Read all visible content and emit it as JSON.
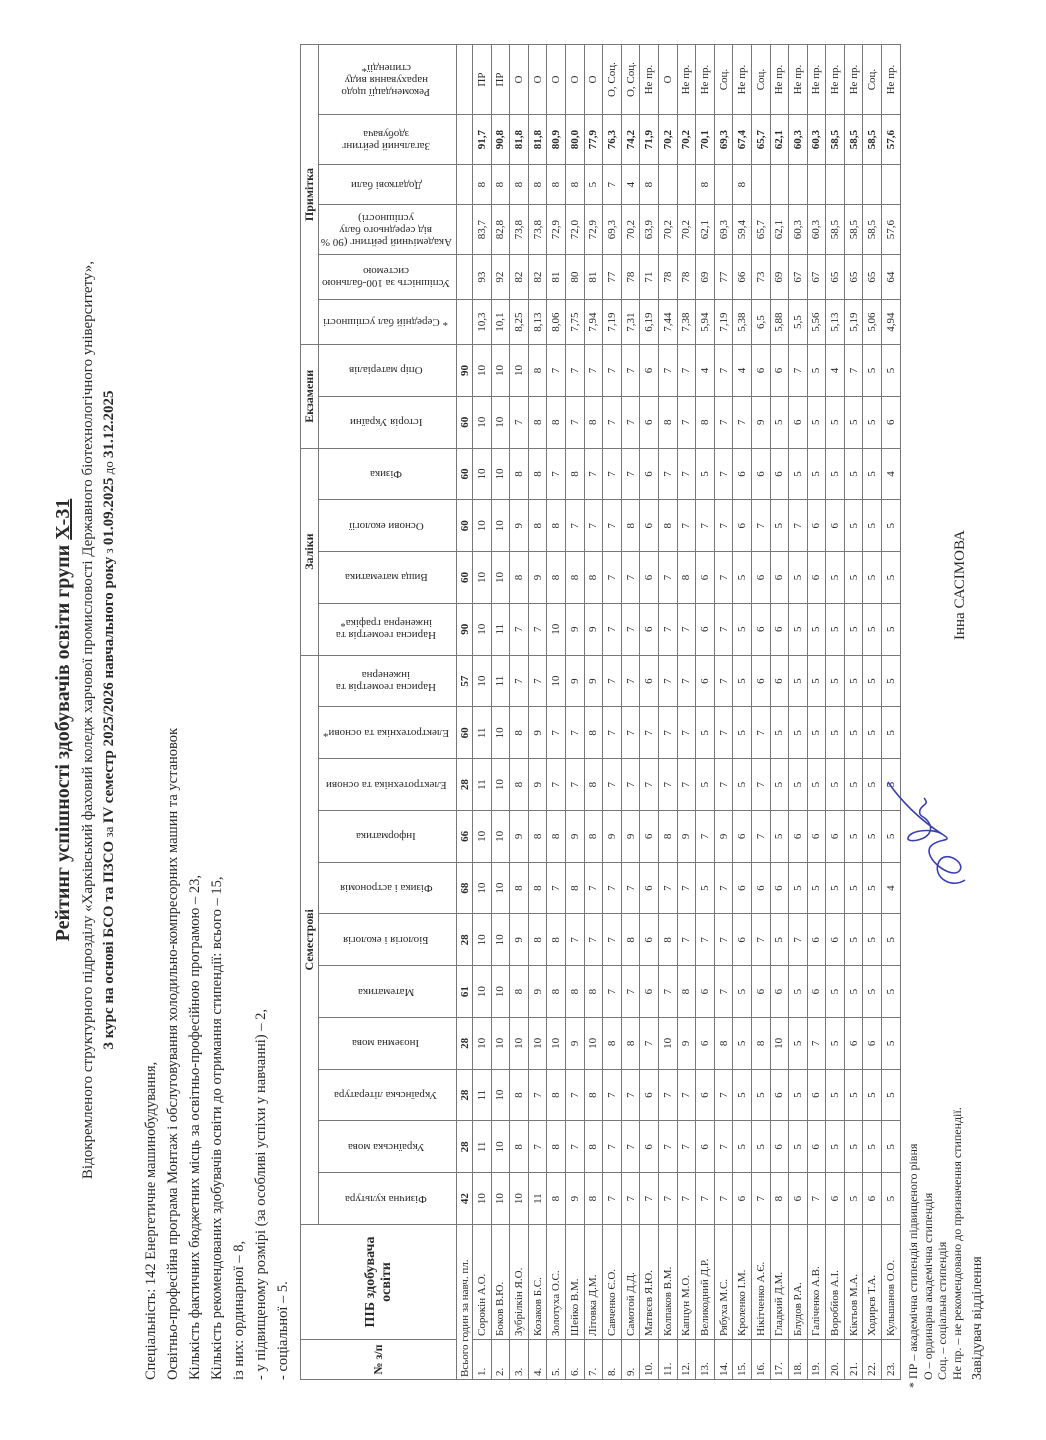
{
  "header": {
    "title_prefix": "Рейтинг успішності здобувачів освіти групи ",
    "group": "Х-31",
    "subtitle": "Відокремленого структурного підрозділу «Харківський фаховий коледж харчової промисловості Державного біотехнологічного університету»,",
    "course_bold": "3 курс на основі БСО та ПЗСО",
    "course_mid": " за ",
    "semester_bold": "IV семестр 2025/2026 навчального року",
    "period_pre": " з ",
    "period_from": "01.09.2025",
    "period_mid": " до ",
    "period_to": "31.12.2025"
  },
  "info": [
    "Спеціальність: 142 Енергетичне машинобудування,",
    "Освітньо-професійна програма Монтаж і обслуговування холодильно-компресорних машин та установок",
    "Кількість фактичних бюджетних місць за освітньо-професійною програмою – 23,",
    "Кількість рекомендованих здобувачів освіти до отримання стипендії: всього – 15,",
    "із них: ординарної – 8,",
    "- у підвищеному розмірі (за особливі успіхи у навчанні) – 2,",
    "- соціальної – 5."
  ],
  "table": {
    "col_num": "№ з/п",
    "col_name": "ПІБ здобувача освіти",
    "groups": [
      {
        "label": "Семестрові",
        "span": 11
      },
      {
        "label": "Заліки",
        "span": 4
      },
      {
        "label": "Екзамени",
        "span": 2
      },
      {
        "label": "Примітка",
        "span": 6
      }
    ],
    "hours_label": "Всього годин за навч. пл.",
    "subjects": [
      {
        "name": "Фізична культура",
        "hours": "42"
      },
      {
        "name": "Українська мова",
        "hours": "28"
      },
      {
        "name": "Українська література",
        "hours": "28"
      },
      {
        "name": "Іноземна мова",
        "hours": "28"
      },
      {
        "name": "Математика",
        "hours": "61"
      },
      {
        "name": "Біологія і екологія",
        "hours": "28"
      },
      {
        "name": "Фізика і астрономія",
        "hours": "68"
      },
      {
        "name": "Інформатика",
        "hours": "66"
      },
      {
        "name": "Електротехніка та основи",
        "hours": "28"
      },
      {
        "name": "Електротехніка та основи*",
        "hours": "60"
      },
      {
        "name": "Нарисна геометрія та інженерна",
        "hours": "57"
      },
      {
        "name": "Нарисна геометрія та інженерна графіка*",
        "hours": "90"
      },
      {
        "name": "Вища математика",
        "hours": "60"
      },
      {
        "name": "Основи екології",
        "hours": "60"
      },
      {
        "name": "Фізика",
        "hours": "60"
      },
      {
        "name": "Історія України",
        "hours": "60"
      },
      {
        "name": "Опір матеріалів",
        "hours": "90"
      }
    ],
    "notes": [
      "* Середній бал успішності",
      "Успішність за 100-бальною системою",
      "Академічний рейтинг (90 % від середнього балу успішності)",
      "Додаткові бали",
      "Загальний рейтинг здобувача",
      "Рекомендації щодо нарахування виду стипендії*"
    ],
    "students": [
      {
        "n": "1.",
        "name": "Сорокін А.О.",
        "g": [
          10,
          11,
          11,
          10,
          10,
          10,
          10,
          10,
          11,
          11,
          10,
          10,
          10,
          10,
          10,
          10,
          10
        ],
        "avg": "10,3",
        "p100": "93",
        "acad": "83,7",
        "extra": "8",
        "total": "91,7",
        "rec": "ПР"
      },
      {
        "n": "2.",
        "name": "Боков В.Ю.",
        "g": [
          10,
          10,
          10,
          10,
          10,
          10,
          10,
          10,
          10,
          10,
          11,
          11,
          10,
          10,
          10,
          10,
          10
        ],
        "avg": "10,1",
        "p100": "92",
        "acad": "82,8",
        "extra": "8",
        "total": "90,8",
        "rec": "ПР"
      },
      {
        "n": "3.",
        "name": "Зубрілкін Я.О.",
        "g": [
          10,
          8,
          8,
          10,
          8,
          9,
          8,
          9,
          8,
          8,
          7,
          7,
          8,
          9,
          8,
          7,
          10
        ],
        "avg": "8,25",
        "p100": "82",
        "acad": "73,8",
        "extra": "8",
        "total": "81,8",
        "rec": "О"
      },
      {
        "n": "4.",
        "name": "Козаков Б.С.",
        "g": [
          11,
          7,
          7,
          10,
          9,
          8,
          8,
          8,
          9,
          9,
          7,
          7,
          9,
          8,
          8,
          8,
          8
        ],
        "avg": "8,13",
        "p100": "82",
        "acad": "73,8",
        "extra": "8",
        "total": "81,8",
        "rec": "О"
      },
      {
        "n": "5.",
        "name": "Золотуха О.С.",
        "g": [
          8,
          8,
          8,
          10,
          8,
          8,
          7,
          8,
          7,
          7,
          10,
          10,
          8,
          8,
          7,
          8,
          7
        ],
        "avg": "8,06",
        "p100": "81",
        "acad": "72,9",
        "extra": "8",
        "total": "80,9",
        "rec": "О"
      },
      {
        "n": "6.",
        "name": "Шейко В.М.",
        "g": [
          9,
          7,
          7,
          9,
          8,
          7,
          8,
          9,
          7,
          7,
          9,
          9,
          8,
          7,
          8,
          7,
          7
        ],
        "avg": "7,75",
        "p100": "80",
        "acad": "72,0",
        "extra": "8",
        "total": "80,0",
        "rec": "О"
      },
      {
        "n": "7.",
        "name": "Літовка Д.М.",
        "g": [
          8,
          8,
          8,
          10,
          8,
          7,
          7,
          8,
          8,
          8,
          9,
          9,
          8,
          7,
          7,
          8,
          7
        ],
        "avg": "7,94",
        "p100": "81",
        "acad": "72,9",
        "extra": "5",
        "total": "77,9",
        "rec": "О"
      },
      {
        "n": "8.",
        "name": "Савченко Є.О.",
        "g": [
          7,
          7,
          7,
          8,
          7,
          7,
          7,
          9,
          7,
          7,
          7,
          7,
          7,
          7,
          7,
          7,
          7
        ],
        "avg": "7,19",
        "p100": "77",
        "acad": "69,3",
        "extra": "7",
        "total": "76,3",
        "rec": "О, Соц."
      },
      {
        "n": "9.",
        "name": "Самотой Д.Д.",
        "g": [
          7,
          7,
          7,
          8,
          7,
          8,
          7,
          9,
          7,
          7,
          7,
          7,
          7,
          8,
          7,
          7,
          7
        ],
        "avg": "7,31",
        "p100": "78",
        "acad": "70,2",
        "extra": "4",
        "total": "74,2",
        "rec": "О, Соц."
      },
      {
        "n": "10.",
        "name": "Матвєєв Я.Ю.",
        "g": [
          7,
          6,
          6,
          7,
          6,
          6,
          6,
          6,
          7,
          7,
          6,
          6,
          6,
          6,
          6,
          6,
          6
        ],
        "avg": "6,19",
        "p100": "71",
        "acad": "63,9",
        "extra": "8",
        "total": "71,9",
        "rec": "Не пр."
      },
      {
        "n": "11.",
        "name": "Колпаков В.М.",
        "g": [
          7,
          7,
          7,
          10,
          7,
          8,
          7,
          8,
          7,
          7,
          7,
          7,
          7,
          8,
          7,
          8,
          7
        ],
        "avg": "7,44",
        "p100": "78",
        "acad": "70,2",
        "extra": "",
        "total": "70,2",
        "rec": "О"
      },
      {
        "n": "12.",
        "name": "Капцун М.О.",
        "g": [
          7,
          7,
          7,
          9,
          8,
          7,
          7,
          9,
          7,
          7,
          7,
          7,
          8,
          7,
          7,
          7,
          7
        ],
        "avg": "7,38",
        "p100": "78",
        "acad": "70,2",
        "extra": "",
        "total": "70,2",
        "rec": "Не пр."
      },
      {
        "n": "13.",
        "name": "Великодний Д.Р.",
        "g": [
          7,
          6,
          6,
          6,
          6,
          7,
          5,
          7,
          5,
          5,
          6,
          6,
          6,
          7,
          5,
          8,
          4
        ],
        "avg": "5,94",
        "p100": "69",
        "acad": "62,1",
        "extra": "8",
        "total": "70,1",
        "rec": "Не пр."
      },
      {
        "n": "14.",
        "name": "Рябуха М.С.",
        "g": [
          7,
          7,
          7,
          8,
          7,
          7,
          7,
          9,
          7,
          7,
          7,
          7,
          7,
          7,
          7,
          7,
          7
        ],
        "avg": "7,19",
        "p100": "77",
        "acad": "69,3",
        "extra": "",
        "total": "69,3",
        "rec": "Соц."
      },
      {
        "n": "15.",
        "name": "Кроленко І.М.",
        "g": [
          6,
          5,
          5,
          5,
          5,
          6,
          6,
          6,
          5,
          5,
          5,
          5,
          5,
          6,
          6,
          7,
          4
        ],
        "avg": "5,38",
        "p100": "66",
        "acad": "59,4",
        "extra": "8",
        "total": "67,4",
        "rec": "Не пр."
      },
      {
        "n": "16.",
        "name": "Нікітченко А.Є.",
        "g": [
          7,
          5,
          5,
          8,
          6,
          7,
          6,
          7,
          7,
          7,
          6,
          6,
          6,
          7,
          6,
          9,
          6
        ],
        "avg": "6,5",
        "p100": "73",
        "acad": "65,7",
        "extra": "",
        "total": "65,7",
        "rec": "Соц."
      },
      {
        "n": "17.",
        "name": "Гладкий Д.М.",
        "g": [
          8,
          6,
          6,
          10,
          6,
          5,
          6,
          5,
          5,
          5,
          6,
          6,
          6,
          5,
          6,
          5,
          6
        ],
        "avg": "5,88",
        "p100": "69",
        "acad": "62,1",
        "extra": "",
        "total": "62,1",
        "rec": "Не пр."
      },
      {
        "n": "18.",
        "name": "Блудов Р.А.",
        "g": [
          6,
          5,
          5,
          5,
          5,
          7,
          5,
          6,
          5,
          5,
          5,
          5,
          5,
          7,
          5,
          6,
          7
        ],
        "avg": "5,5",
        "p100": "67",
        "acad": "60,3",
        "extra": "",
        "total": "60,3",
        "rec": "Не пр."
      },
      {
        "n": "19.",
        "name": "Галіченко А.В.",
        "g": [
          7,
          6,
          6,
          7,
          6,
          6,
          5,
          6,
          5,
          5,
          5,
          5,
          6,
          6,
          5,
          5,
          5
        ],
        "avg": "5,56",
        "p100": "67",
        "acad": "60,3",
        "extra": "",
        "total": "60,3",
        "rec": "Не пр."
      },
      {
        "n": "20.",
        "name": "Воробйов А.І.",
        "g": [
          6,
          5,
          5,
          5,
          5,
          6,
          5,
          6,
          5,
          5,
          5,
          5,
          5,
          6,
          5,
          5,
          4
        ],
        "avg": "5,13",
        "p100": "65",
        "acad": "58,5",
        "extra": "",
        "total": "58,5",
        "rec": "Не пр."
      },
      {
        "n": "21.",
        "name": "Кіктьов М.А.",
        "g": [
          5,
          5,
          5,
          6,
          5,
          5,
          5,
          5,
          5,
          5,
          5,
          5,
          5,
          5,
          5,
          5,
          7
        ],
        "avg": "5,19",
        "p100": "65",
        "acad": "58,5",
        "extra": "",
        "total": "58,5",
        "rec": "Не пр."
      },
      {
        "n": "22.",
        "name": "Ходирєв Т.А.",
        "g": [
          6,
          5,
          5,
          6,
          5,
          5,
          5,
          5,
          5,
          5,
          5,
          5,
          5,
          5,
          5,
          5,
          5
        ],
        "avg": "5,06",
        "p100": "65",
        "acad": "58,5",
        "extra": "",
        "total": "58,5",
        "rec": "Соц."
      },
      {
        "n": "23.",
        "name": "Кульшанов О.О.",
        "g": [
          5,
          5,
          5,
          5,
          5,
          5,
          4,
          5,
          5,
          5,
          5,
          5,
          5,
          5,
          4,
          6,
          5
        ],
        "avg": "4,94",
        "p100": "64",
        "acad": "57,6",
        "extra": "",
        "total": "57,6",
        "rec": "Не пр."
      }
    ]
  },
  "footnotes": [
    "* ПР – академічна стипендія підвищеного рівня",
    "О – ординарна академічна стипендія",
    "Соц. – соціальна стипендія",
    "Не пр. – не рекомендовано до призначення стипендії."
  ],
  "signature": {
    "position": "Завідувач відділення",
    "name": "Інна САСІМОВА",
    "ink_color": "#3a3fb0"
  }
}
